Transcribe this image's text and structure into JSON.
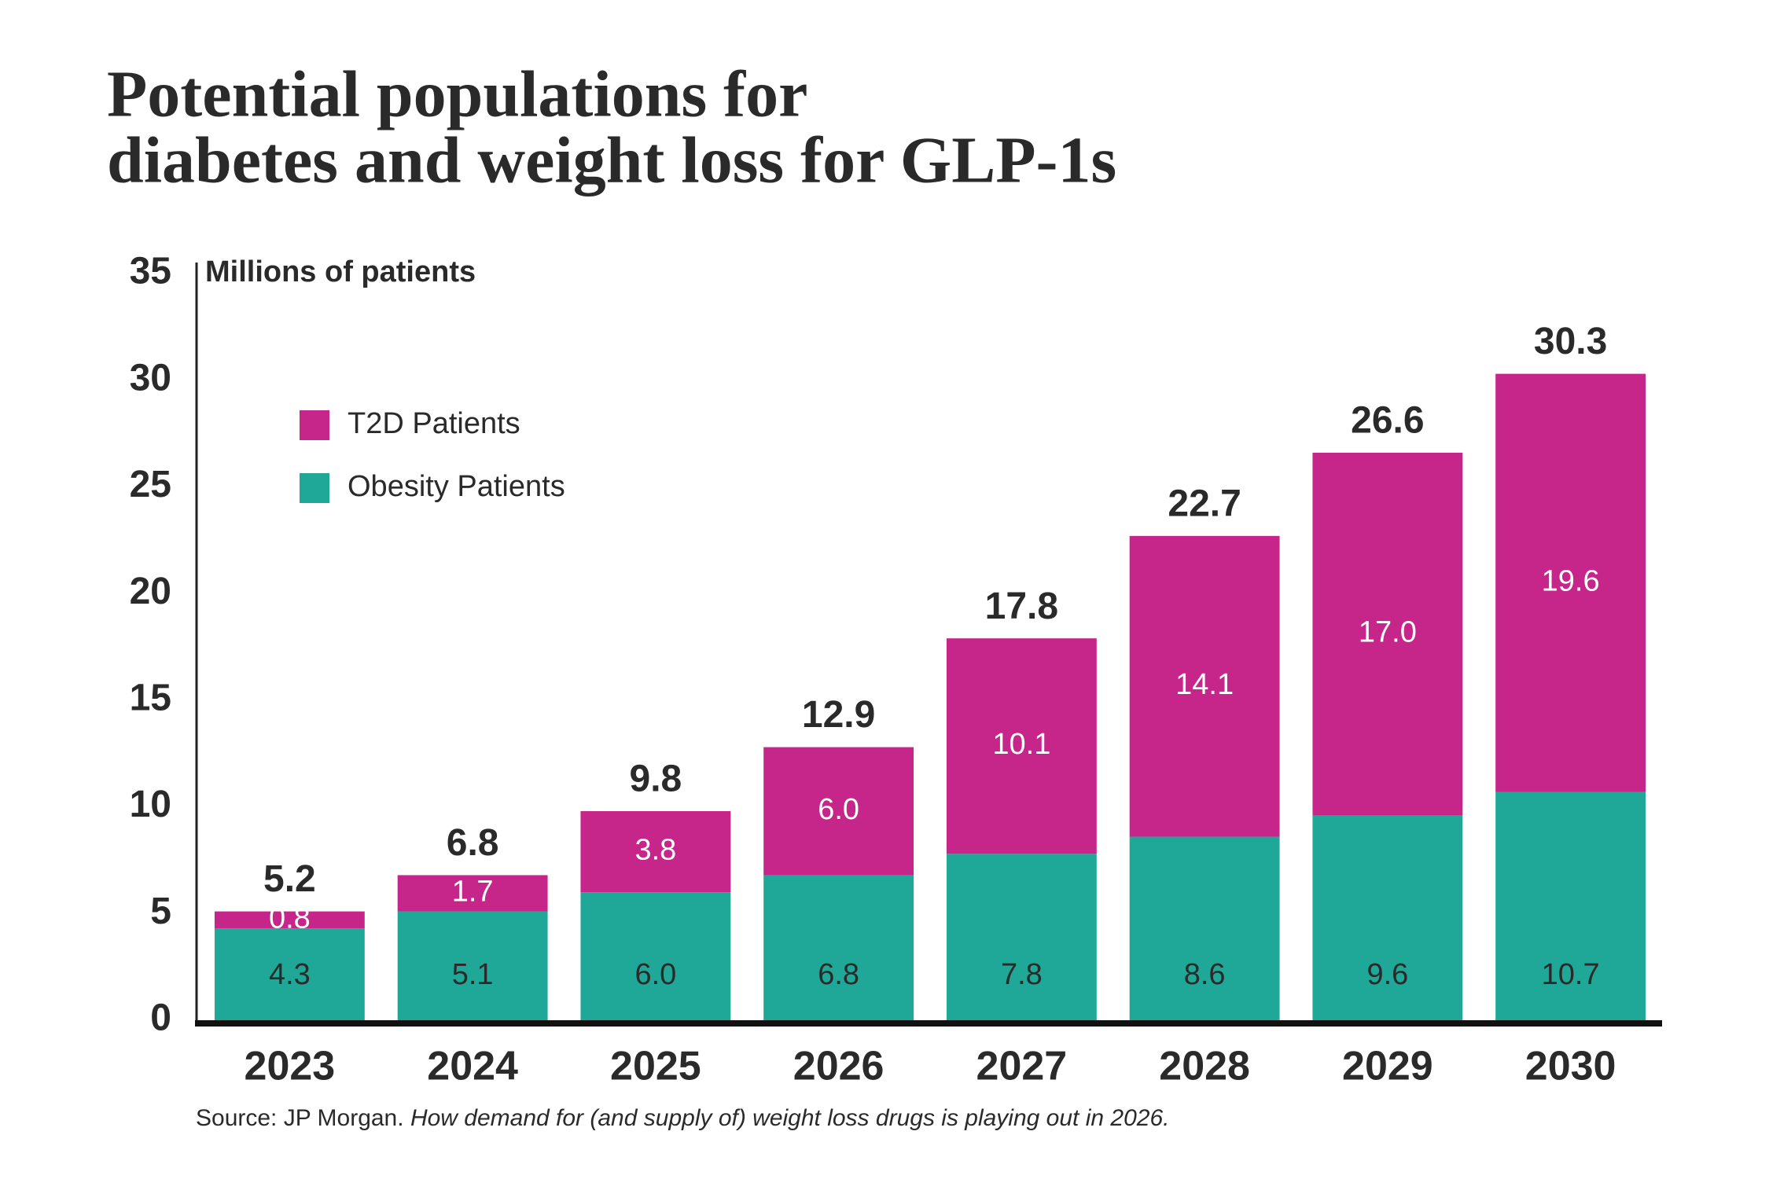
{
  "chart_data": {
    "type": "stacked_bar",
    "title": [
      "Potential populations for",
      "diabetes and weight loss for GLP-1s"
    ],
    "y_label": "Millions of patients",
    "categories": [
      "2023",
      "2024",
      "2025",
      "2026",
      "2027",
      "2028",
      "2029",
      "2030"
    ],
    "series": [
      {
        "name": "Obesity Patients",
        "color": "#1fa898",
        "values": [
          4.3,
          5.1,
          6.0,
          6.8,
          7.8,
          8.6,
          9.6,
          10.7
        ],
        "value_labels": [
          "4.3",
          "5.1",
          "6.0",
          "6.8",
          "7.8",
          "8.6",
          "9.6",
          "10.7"
        ]
      },
      {
        "name": "T2D Patients",
        "color": "#c6268a",
        "values": [
          0.8,
          1.7,
          3.8,
          6.0,
          10.1,
          14.1,
          17.0,
          19.6
        ],
        "value_labels": [
          "0.8",
          "1.7",
          "3.8",
          "6.0",
          "10.1",
          "14.1",
          "17.0",
          "19.6"
        ]
      }
    ],
    "totals": [
      5.2,
      6.8,
      9.8,
      12.9,
      17.8,
      22.7,
      26.6,
      30.3
    ],
    "ylim": [
      0,
      35
    ],
    "yticks": [
      0,
      5,
      10,
      15,
      20,
      25,
      30,
      35
    ],
    "source": {
      "label": "Source: JP Morgan.",
      "title": "How demand for (and supply of) weight loss drugs is playing out in 2026."
    }
  }
}
